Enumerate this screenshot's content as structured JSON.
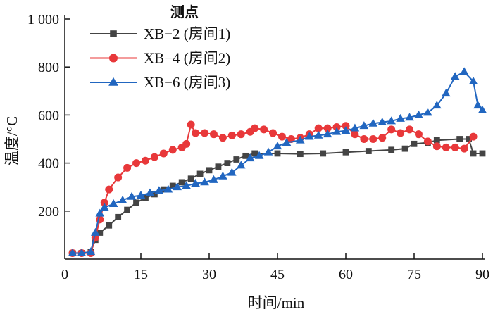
{
  "chart_data": {
    "type": "line",
    "xlabel": "时间/min",
    "ylabel": "温度/°C",
    "xlim": [
      0,
      90
    ],
    "ylim": [
      0,
      1000
    ],
    "xticks": [
      0,
      15,
      30,
      45,
      60,
      75,
      90
    ],
    "yticks": [
      200,
      400,
      600,
      800,
      1000
    ],
    "ytick_labels": [
      "200",
      "400",
      "600",
      "800",
      "1 000"
    ],
    "grid": false,
    "legend": {
      "title": "测点",
      "placement": "top-left"
    },
    "series": [
      {
        "name": "XB−2 (房间1)",
        "color": "#444444",
        "marker": "square",
        "x": [
          0,
          2,
          4,
          5,
          6,
          8,
          10,
          12,
          14,
          16,
          18,
          20,
          22,
          24,
          26,
          28,
          30,
          32,
          34,
          36,
          38,
          40,
          45,
          50,
          55,
          60,
          65,
          70,
          73,
          75,
          78,
          80,
          85,
          87,
          88,
          90
        ],
        "y": [
          25,
          25,
          30,
          80,
          110,
          140,
          175,
          205,
          235,
          255,
          270,
          290,
          305,
          320,
          335,
          355,
          370,
          385,
          400,
          415,
          430,
          440,
          440,
          438,
          440,
          445,
          450,
          455,
          460,
          480,
          485,
          495,
          500,
          500,
          440,
          440
        ]
      },
      {
        "name": "XB−4 (房间2)",
        "color": "#e8383a",
        "marker": "circle",
        "x": [
          0,
          2,
          4,
          5,
          6,
          7,
          8,
          10,
          12,
          14,
          16,
          18,
          20,
          22,
          24,
          25,
          26,
          27,
          29,
          31,
          33,
          35,
          37,
          39,
          40,
          42,
          44,
          46,
          48,
          50,
          52,
          54,
          56,
          58,
          60,
          62,
          64,
          66,
          68,
          70,
          72,
          74,
          76,
          78,
          80,
          82,
          84,
          86,
          88
        ],
        "y": [
          25,
          25,
          25,
          90,
          165,
          235,
          290,
          340,
          380,
          400,
          410,
          425,
          440,
          455,
          465,
          480,
          560,
          525,
          525,
          520,
          505,
          515,
          520,
          530,
          545,
          540,
          525,
          510,
          500,
          505,
          520,
          545,
          545,
          550,
          555,
          520,
          500,
          500,
          505,
          540,
          525,
          540,
          520,
          490,
          470,
          465,
          465,
          460,
          510
        ]
      },
      {
        "name": "XB−6 (房间3)",
        "color": "#2166c0",
        "marker": "triangle",
        "x": [
          0,
          2,
          4,
          5,
          6,
          7,
          9,
          11,
          13,
          15,
          17,
          19,
          21,
          23,
          25,
          27,
          29,
          31,
          33,
          35,
          37,
          39,
          41,
          43,
          45,
          47,
          50,
          52,
          54,
          56,
          58,
          60,
          62,
          64,
          66,
          68,
          70,
          72,
          74,
          76,
          78,
          80,
          82,
          84,
          86,
          88,
          89,
          90
        ],
        "y": [
          25,
          25,
          30,
          110,
          190,
          215,
          230,
          245,
          260,
          265,
          275,
          285,
          290,
          300,
          305,
          315,
          320,
          330,
          345,
          360,
          390,
          420,
          430,
          445,
          470,
          485,
          495,
          510,
          515,
          520,
          530,
          535,
          545,
          555,
          565,
          570,
          575,
          585,
          590,
          600,
          610,
          640,
          690,
          760,
          780,
          740,
          640,
          620
        ]
      }
    ]
  }
}
